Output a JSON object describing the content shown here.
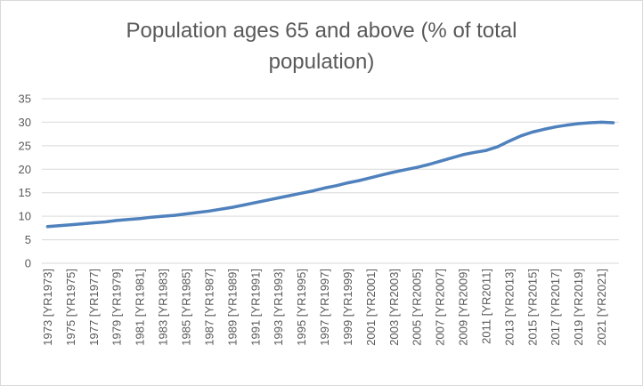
{
  "chart_data": {
    "type": "line",
    "title_lines": [
      "Population ages 65 and above (% of total",
      "population)"
    ],
    "xlabel": "",
    "ylabel": "",
    "ylim": [
      0,
      35
    ],
    "yticks": [
      0,
      5,
      10,
      15,
      20,
      25,
      30,
      35
    ],
    "grid": true,
    "legend": "none",
    "x": [
      "1973 [YR1973]",
      "1974 [YR1974]",
      "1975 [YR1975]",
      "1976 [YR1976]",
      "1977 [YR1977]",
      "1978 [YR1978]",
      "1979 [YR1979]",
      "1980 [YR1980]",
      "1981 [YR1981]",
      "1982 [YR1982]",
      "1983 [YR1983]",
      "1984 [YR1984]",
      "1985 [YR1985]",
      "1986 [YR1986]",
      "1987 [YR1987]",
      "1988 [YR1988]",
      "1989 [YR1989]",
      "1990 [YR1990]",
      "1991 [YR1991]",
      "1992 [YR1992]",
      "1993 [YR1993]",
      "1994 [YR1994]",
      "1995 [YR1995]",
      "1996 [YR1996]",
      "1997 [YR1997]",
      "1998 [YR1998]",
      "1999 [YR1999]",
      "2000 [YR2000]",
      "2001 [YR2001]",
      "2002 [YR2002]",
      "2003 [YR2003]",
      "2004 [YR2004]",
      "2005 [YR2005]",
      "2006 [YR2006]",
      "2007 [YR2007]",
      "2008 [YR2008]",
      "2009 [YR2009]",
      "2010 [YR2010]",
      "2011 [YR2011]",
      "2012 [YR2012]",
      "2013 [YR2013]",
      "2014 [YR2014]",
      "2015 [YR2015]",
      "2016 [YR2016]",
      "2017 [YR2017]",
      "2018 [YR2018]",
      "2019 [YR2019]",
      "2020 [YR2020]",
      "2021 [YR2021]",
      "2022 [YR2022]"
    ],
    "tick_labels": [
      "1973 [YR1973]",
      "1975 [YR1975]",
      "1977 [YR1977]",
      "1979 [YR1979]",
      "1981 [YR1981]",
      "1983 [YR1983]",
      "1985 [YR1985]",
      "1987 [YR1987]",
      "1989 [YR1989]",
      "1991 [YR1991]",
      "1993 [YR1993]",
      "1995 [YR1995]",
      "1997 [YR1997]",
      "1999 [YR1999]",
      "2001 [YR2001]",
      "2003 [YR2003]",
      "2005 [YR2005]",
      "2007 [YR2007]",
      "2009 [YR2009]",
      "2011 [YR2011]",
      "2013 [YR2013]",
      "2015 [YR2015]",
      "2017 [YR2017]",
      "2019 [YR2019]",
      "2021 [YR2021]"
    ],
    "series": [
      {
        "name": "Population ages 65 and above (% of total population)",
        "color": "#4f81bd",
        "values": [
          7.8,
          8.0,
          8.2,
          8.4,
          8.6,
          8.8,
          9.1,
          9.3,
          9.5,
          9.8,
          10.0,
          10.2,
          10.5,
          10.8,
          11.1,
          11.5,
          11.9,
          12.4,
          12.9,
          13.4,
          13.9,
          14.4,
          14.9,
          15.4,
          16.0,
          16.5,
          17.1,
          17.6,
          18.2,
          18.8,
          19.4,
          19.9,
          20.4,
          21.0,
          21.7,
          22.4,
          23.1,
          23.6,
          24.0,
          24.8,
          26.0,
          27.1,
          27.9,
          28.5,
          29.0,
          29.4,
          29.7,
          29.9,
          30.0,
          29.9
        ]
      }
    ]
  }
}
